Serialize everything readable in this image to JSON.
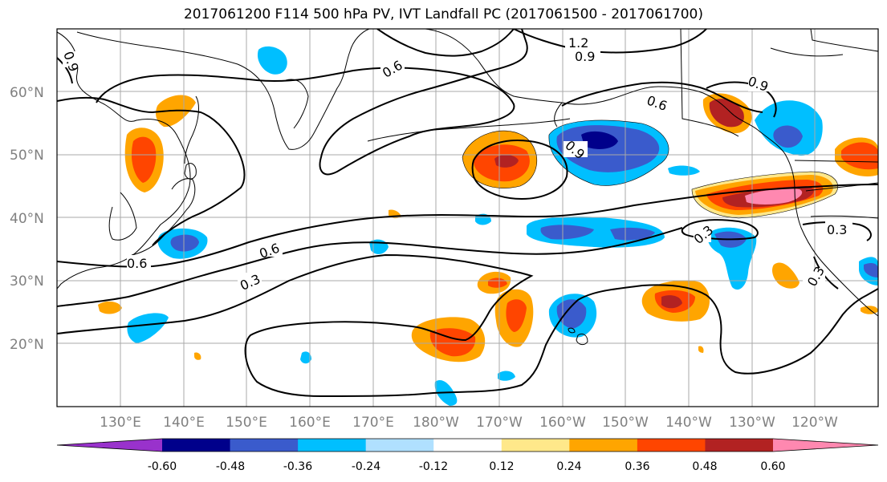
{
  "title": "2017061200 F114 500 hPa PV, IVT Landfall PC (2017061500 - 2017061700)",
  "lat_labels": [
    "60°N",
    "50°N",
    "40°N",
    "30°N",
    "20°N"
  ],
  "lon_labels": [
    "130°E",
    "140°E",
    "150°E",
    "160°E",
    "170°E",
    "180°W",
    "170°W",
    "160°W",
    "150°W",
    "140°W",
    "130°W",
    "120°W"
  ],
  "contour_labels": [
    "1.2",
    "0.9",
    "0.6",
    "0.9",
    "0.6",
    "0.9",
    "0.9",
    "0.6",
    "0.6",
    "0.3",
    "0.3",
    "0.3",
    "0.3"
  ],
  "colorbar": {
    "tick_labels": [
      "-0.60",
      "-0.48",
      "-0.36",
      "-0.24",
      "-0.12",
      "0.12",
      "0.24",
      "0.36",
      "0.48",
      "0.60"
    ],
    "colors": [
      "#9932cc",
      "#00008b",
      "#3a5bcc",
      "#00bfff",
      "#b0e0ff",
      "#ffffff",
      "#ffe88a",
      "#ffa500",
      "#ff4500",
      "#b22222",
      "#ff88b0"
    ]
  },
  "fill_colors": {
    "blue_light": "#00bfff",
    "blue_mid": "#3a5bcc",
    "blue_dark": "#00008b",
    "yellow": "#ffe88a",
    "orange": "#ffa500",
    "red_orange": "#ff4500",
    "dark_red": "#b22222",
    "pink": "#ff88b0"
  }
}
